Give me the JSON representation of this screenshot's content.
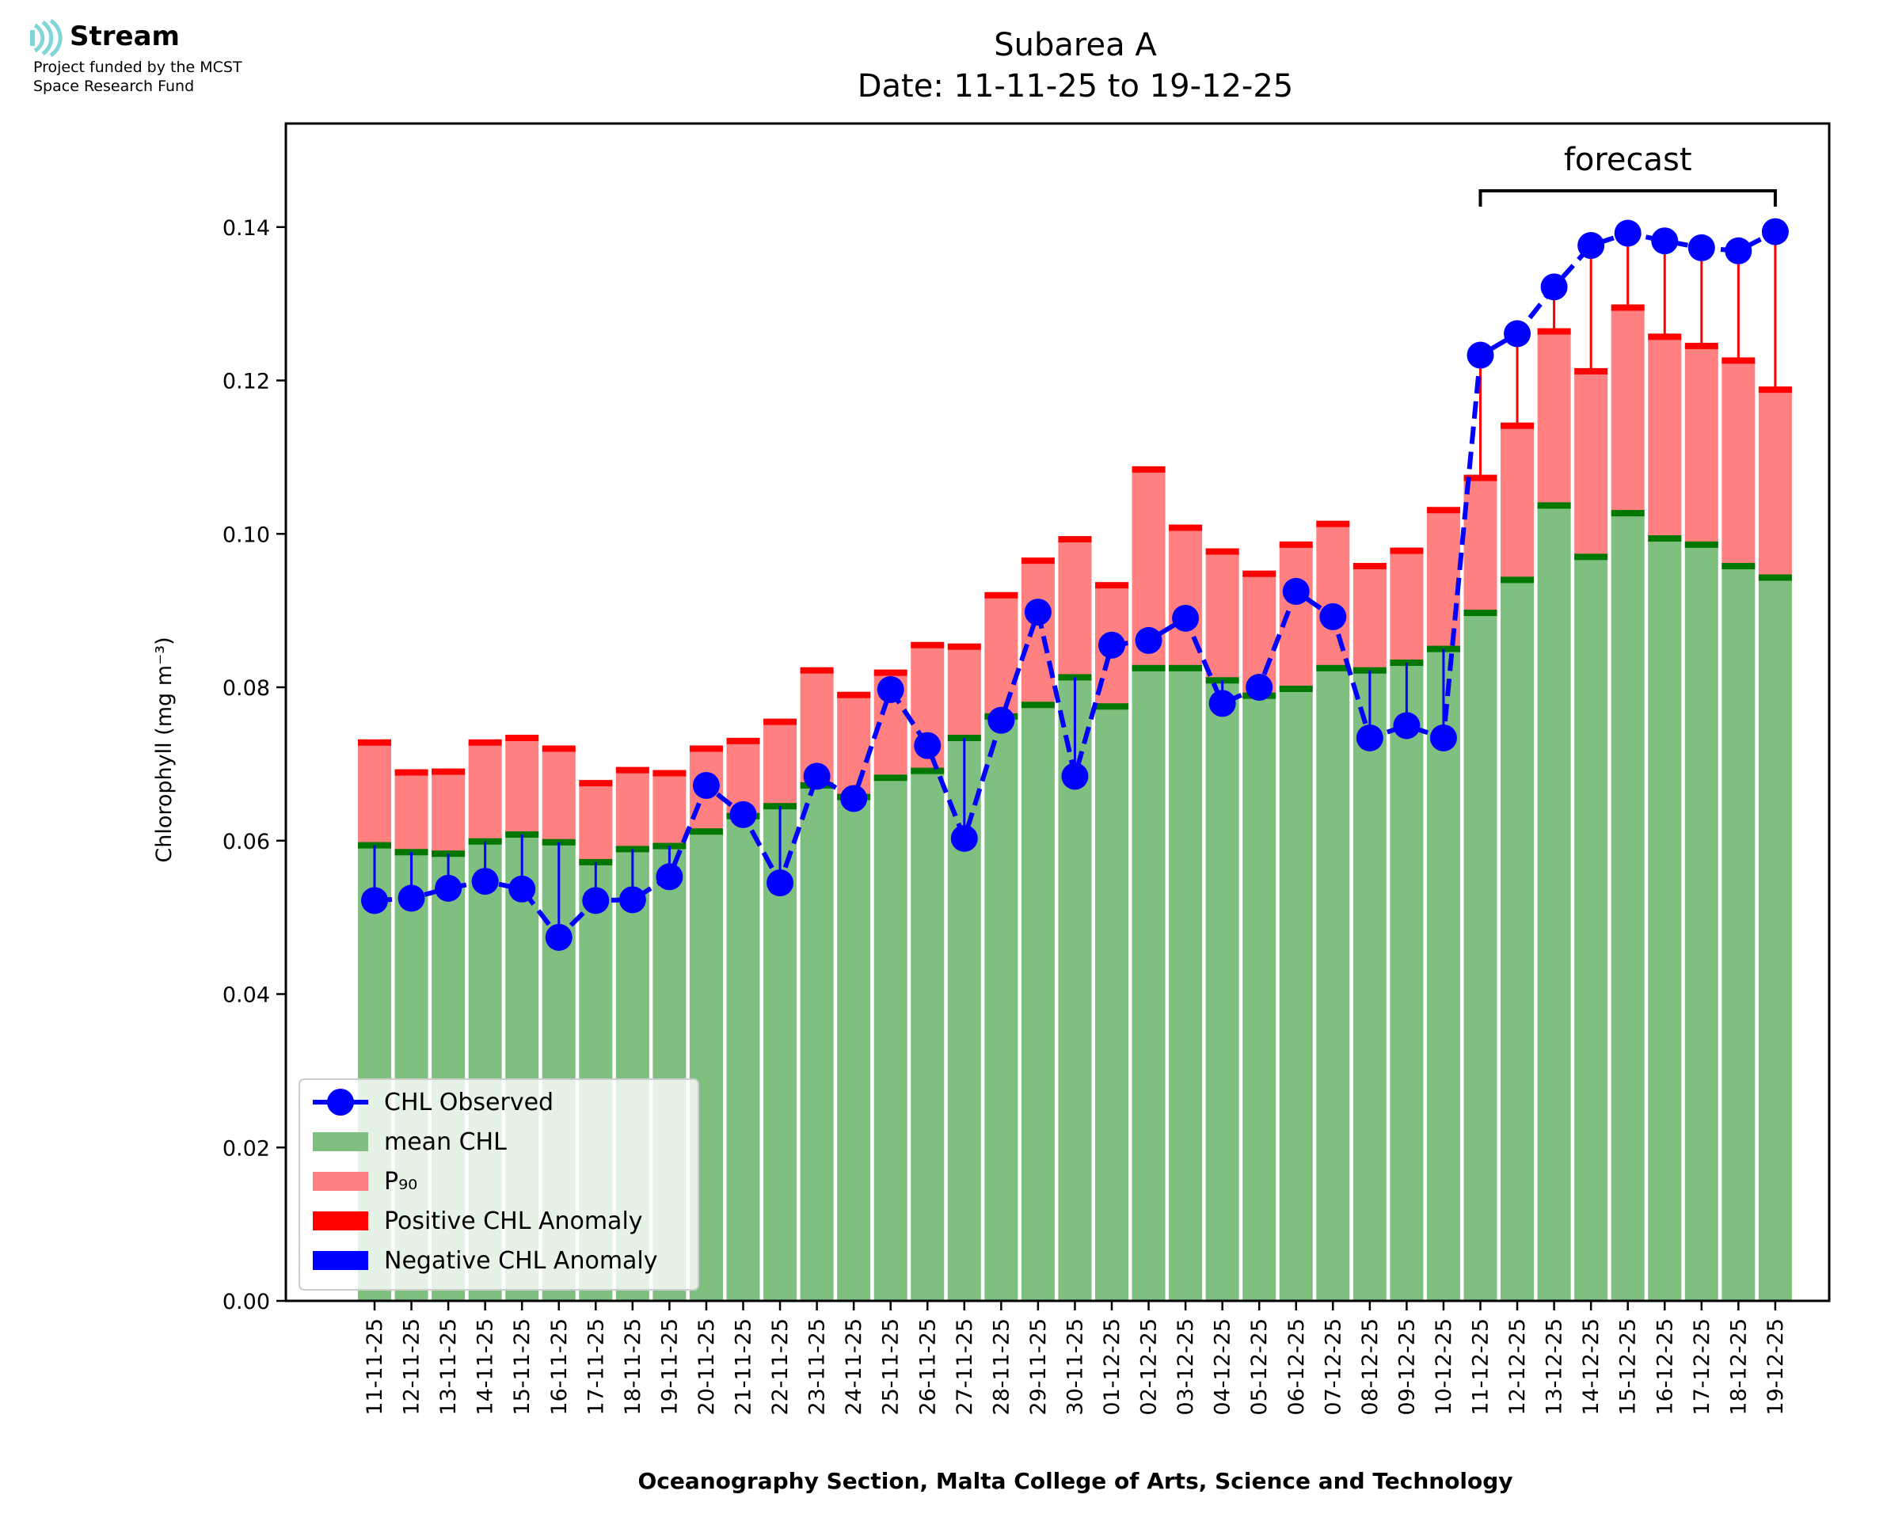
{
  "logo": {
    "name": "Stream",
    "line1": "Project funded by the MCST",
    "line2": "Space Research Fund",
    "color": "#7fd6d6"
  },
  "chart_data": {
    "type": "bar",
    "title": "Subarea A",
    "subtitle": "Date: 11-11-25 to 19-12-25",
    "xlabel": "Oceanography Section, Malta College of Arts, Science and Technology",
    "ylabel": "Chlorophyll (mg m⁻³)",
    "ylim": [
      0,
      0.1535
    ],
    "yticks": [
      0.0,
      0.02,
      0.04,
      0.06,
      0.08,
      0.1,
      0.12,
      0.14
    ],
    "ytick_labels": [
      "0.00",
      "0.02",
      "0.04",
      "0.06",
      "0.08",
      "0.10",
      "0.12",
      "0.14"
    ],
    "grid": false,
    "legend_position": "bottom-left",
    "categories": [
      "11-11-25",
      "12-11-25",
      "13-11-25",
      "14-11-25",
      "15-11-25",
      "16-11-25",
      "17-11-25",
      "18-11-25",
      "19-11-25",
      "20-11-25",
      "21-11-25",
      "22-11-25",
      "23-11-25",
      "24-11-25",
      "25-11-25",
      "26-11-25",
      "27-11-25",
      "28-11-25",
      "29-11-25",
      "30-11-25",
      "01-12-25",
      "02-12-25",
      "03-12-25",
      "04-12-25",
      "05-12-25",
      "06-12-25",
      "07-12-25",
      "08-12-25",
      "09-12-25",
      "10-12-25",
      "11-12-25",
      "12-12-25",
      "13-12-25",
      "14-12-25",
      "15-12-25",
      "16-12-25",
      "17-12-25",
      "18-12-25",
      "19-12-25"
    ],
    "series": [
      {
        "name": "mean CHL",
        "color": "#7fbf7f",
        "values": [
          0.0594,
          0.0585,
          0.0583,
          0.0599,
          0.0608,
          0.0598,
          0.0572,
          0.0589,
          0.0593,
          0.0612,
          0.0632,
          0.0645,
          0.0672,
          0.0657,
          0.0682,
          0.0691,
          0.0734,
          0.0762,
          0.0777,
          0.0813,
          0.0775,
          0.0825,
          0.0825,
          0.0809,
          0.0789,
          0.0798,
          0.0825,
          0.0822,
          0.0832,
          0.085,
          0.0897,
          0.094,
          0.1037,
          0.097,
          0.1027,
          0.0994,
          0.0986,
          0.0958,
          0.0943
        ]
      },
      {
        "name": "P₉₀",
        "color": "#ff8080",
        "values": [
          0.0728,
          0.0689,
          0.069,
          0.0728,
          0.0734,
          0.072,
          0.0675,
          0.0692,
          0.0688,
          0.072,
          0.073,
          0.0755,
          0.0822,
          0.079,
          0.0819,
          0.0855,
          0.0853,
          0.092,
          0.0965,
          0.0993,
          0.0933,
          0.1084,
          0.1008,
          0.0977,
          0.0948,
          0.0986,
          0.1013,
          0.0958,
          0.0978,
          0.1031,
          0.1073,
          0.1141,
          0.1264,
          0.1212,
          0.1295,
          0.1257,
          0.1245,
          0.1226,
          0.1188
        ]
      },
      {
        "name": "CHL Observed",
        "color": "#0000ff",
        "values": [
          0.0522,
          0.0525,
          0.0538,
          0.0547,
          0.0537,
          0.0474,
          0.0522,
          0.0523,
          0.0553,
          0.0672,
          0.0634,
          0.0545,
          0.0684,
          0.0655,
          0.0797,
          0.0724,
          0.0603,
          0.0757,
          0.0898,
          0.0684,
          0.0855,
          0.0861,
          0.089,
          0.0779,
          0.08,
          0.0925,
          0.0892,
          0.0734,
          0.075,
          0.0734,
          0.1233,
          0.1261,
          0.1322,
          0.1376,
          0.1392,
          0.1382,
          0.1373,
          0.1369,
          0.1394
        ]
      }
    ],
    "legend": [
      {
        "label": "CHL Observed",
        "color": "#0000ff",
        "kind": "line-marker"
      },
      {
        "label": "mean CHL",
        "color": "#7fbf7f",
        "kind": "patch"
      },
      {
        "label": "P₉₀",
        "color": "#ff8080",
        "kind": "patch"
      },
      {
        "label": "Positive CHL Anomaly",
        "color": "#ff0000",
        "kind": "patch"
      },
      {
        "label": "Negative CHL Anomaly",
        "color": "#0000ff",
        "kind": "patch"
      }
    ],
    "annotation": {
      "text": "forecast",
      "from": "11-12-25",
      "to": "19-12-25"
    },
    "colors": {
      "mean_cap": "#007700",
      "p90_cap": "#ff0000",
      "positive": "#ff0000",
      "negative": "#0000ff"
    }
  }
}
